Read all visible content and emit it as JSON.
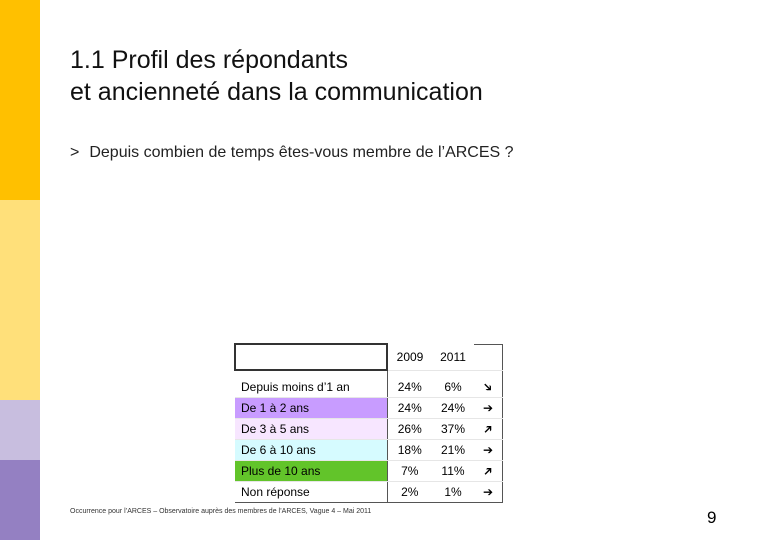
{
  "title": {
    "line1": "1.1 Profil des répondants",
    "line2": "et ancienneté dans la communication"
  },
  "question": {
    "symbol": ">",
    "text": "Depuis combien de temps êtes-vous membre de l’ARCES ?"
  },
  "table": {
    "headers": [
      "2009",
      "2011"
    ],
    "rows": [
      {
        "label": "Depuis moins d’1 an",
        "v2009": "24%",
        "v2011": "6%",
        "trend": "down",
        "trend_symbol": "➔"
      },
      {
        "label": "De 1 à 2 ans",
        "v2009": "24%",
        "v2011": "24%",
        "trend": "flat",
        "trend_symbol": "➔"
      },
      {
        "label": "De 3 à 5 ans",
        "v2009": "26%",
        "v2011": "37%",
        "trend": "up",
        "trend_symbol": "➔"
      },
      {
        "label": "De 6 à 10 ans",
        "v2009": "18%",
        "v2011": "21%",
        "trend": "flat",
        "trend_symbol": "➔"
      },
      {
        "label": "Plus de 10 ans",
        "v2009": "7%",
        "v2011": "11%",
        "trend": "up",
        "trend_symbol": "➔"
      },
      {
        "label": "Non réponse",
        "v2009": "2%",
        "v2011": "1%",
        "trend": "flat",
        "trend_symbol": "➔"
      }
    ]
  },
  "source": "Occurrence pour l’ARCES – Observatoire auprès des membres de l’ARCES, Vague 4 – Mai 2011",
  "page_number": "9",
  "colors": {
    "sidebar_top": "#ffc000",
    "sidebar_mid": "#ffe07a",
    "sidebar_lower": "#c8bedf",
    "sidebar_bottom": "#9480c2"
  }
}
